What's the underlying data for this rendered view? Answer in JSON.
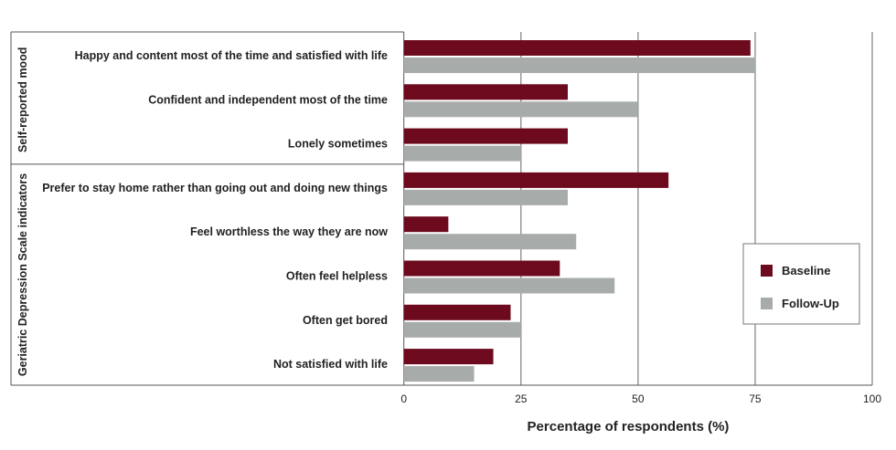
{
  "chart_data": {
    "type": "bar",
    "orientation": "horizontal",
    "title": "",
    "xlabel": "Percentage of respondents (%)",
    "ylabel": "",
    "xlim": [
      0,
      100
    ],
    "xticks": [
      "0",
      "25",
      "50",
      "75",
      "100"
    ],
    "grid": true,
    "legend_position": "right",
    "groups": [
      {
        "label": "Self-reported mood",
        "categories": [
          0,
          1,
          2
        ]
      },
      {
        "label": "Geriatric Depression Scale indicators",
        "categories": [
          3,
          4,
          5,
          6,
          7
        ]
      }
    ],
    "categories": [
      "Happy and content most of the time and satisfied with life",
      "Confident and independent most of the time",
      "Lonely sometimes",
      "Prefer to stay home rather than going out and doing new things",
      "Feel worthless the way they are now",
      "Often feel helpless",
      "Often get bored",
      "Not satisfied with life"
    ],
    "series": [
      {
        "name": "Baseline",
        "color": "#6e0a1e",
        "values": [
          74,
          35,
          35,
          56.5,
          9.5,
          33.3,
          22.8,
          19.1
        ]
      },
      {
        "name": "Follow-Up",
        "color": "#a7acab",
        "values": [
          75,
          50,
          25,
          35,
          36.8,
          45,
          25,
          15
        ]
      }
    ]
  }
}
